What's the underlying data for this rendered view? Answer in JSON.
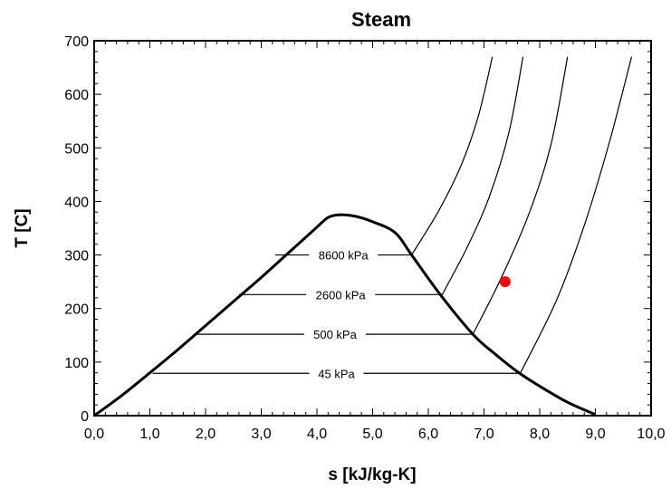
{
  "chart_data": {
    "type": "line",
    "title": "Steam",
    "xlabel": "s [kJ/kg-K]",
    "ylabel": "T [C]",
    "xlim": [
      0,
      10
    ],
    "ylim": [
      0,
      700
    ],
    "x_ticks": [
      "0,0",
      "1,0",
      "2,0",
      "3,0",
      "4,0",
      "5,0",
      "6,0",
      "7,0",
      "8,0",
      "9,0",
      "10,0"
    ],
    "y_ticks": [
      "0",
      "100",
      "200",
      "300",
      "400",
      "500",
      "600",
      "700"
    ],
    "grid": false,
    "saturation_dome": {
      "x": [
        0.0,
        0.5,
        1.0,
        1.5,
        2.0,
        2.5,
        3.0,
        3.5,
        4.0,
        4.2,
        4.4,
        4.7,
        5.0,
        5.4,
        5.7,
        6.2,
        6.8,
        7.2,
        7.6,
        8.0,
        8.5,
        9.0
      ],
      "y": [
        0,
        38,
        80,
        123,
        168,
        213,
        258,
        305,
        352,
        370,
        375,
        372,
        362,
        342,
        300,
        228,
        152,
        115,
        82,
        55,
        25,
        2
      ]
    },
    "isobars": [
      {
        "label": "8600 kPa",
        "T_sat": 300,
        "s_liquid": 3.25,
        "s_vapor": 5.7,
        "superheat": {
          "x": [
            5.7,
            6.2,
            6.6,
            6.9,
            7.15
          ],
          "y": [
            300,
            385,
            470,
            560,
            670
          ]
        }
      },
      {
        "label": "2600 kPa",
        "T_sat": 226,
        "s_liquid": 2.6,
        "s_vapor": 6.25,
        "superheat": {
          "x": [
            6.25,
            6.7,
            7.1,
            7.45,
            7.7
          ],
          "y": [
            226,
            315,
            410,
            530,
            670
          ]
        }
      },
      {
        "label": "500 kPa",
        "T_sat": 152,
        "s_liquid": 1.85,
        "s_vapor": 6.8,
        "superheat": {
          "x": [
            6.8,
            7.3,
            7.8,
            8.2,
            8.5
          ],
          "y": [
            152,
            255,
            375,
            505,
            670
          ]
        }
      },
      {
        "label": "45 kPa",
        "T_sat": 79,
        "s_liquid": 1.05,
        "s_vapor": 7.65,
        "superheat": {
          "x": [
            7.65,
            8.3,
            8.8,
            9.25,
            9.65
          ],
          "y": [
            79,
            215,
            355,
            510,
            670
          ]
        }
      }
    ],
    "state_point": {
      "x": 7.38,
      "y": 250,
      "color": "#ff0000"
    }
  }
}
